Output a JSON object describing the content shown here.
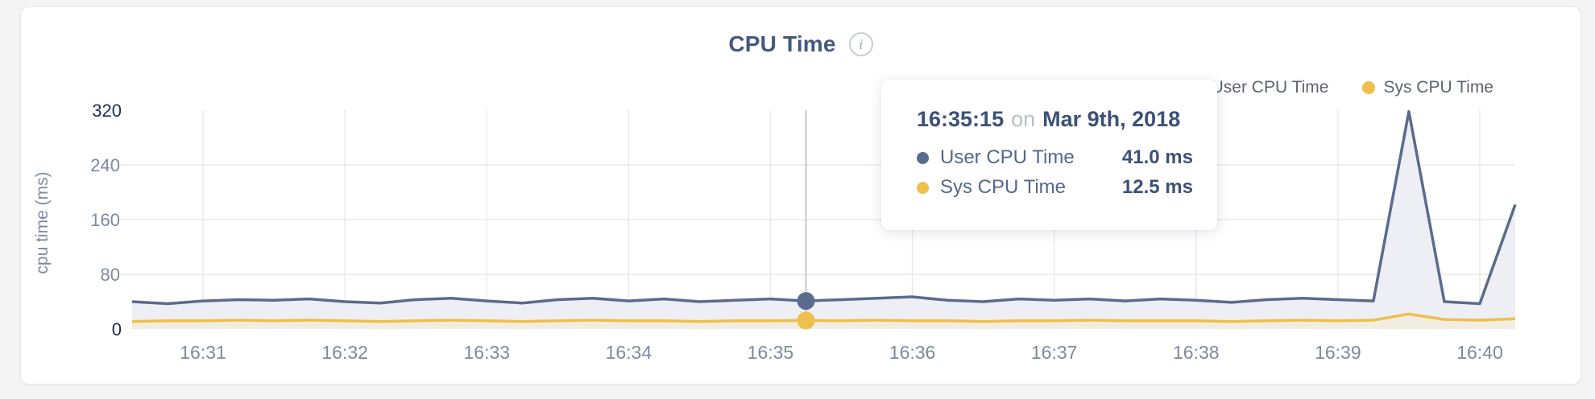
{
  "header": {
    "title": "CPU Time",
    "info_glyph": "i"
  },
  "legend": {
    "items": [
      {
        "label": "User CPU Time",
        "color": "#5b6b8e"
      },
      {
        "label": "Sys CPU Time",
        "color": "#edbf4c"
      }
    ]
  },
  "tooltip": {
    "time": "16:35:15",
    "conj": "on",
    "date": "Mar 9th, 2018",
    "rows": [
      {
        "label": "User CPU Time",
        "value": "41.0 ms",
        "color": "#5b6b8e"
      },
      {
        "label": "Sys CPU Time",
        "value": "12.5 ms",
        "color": "#edbf4c"
      }
    ]
  },
  "chart_data": {
    "type": "line",
    "title": "CPU Time",
    "xlabel": "",
    "ylabel": "cpu time (ms)",
    "ylim": [
      0,
      320
    ],
    "y_ticks": [
      0,
      80,
      160,
      240,
      320
    ],
    "x_ticks": [
      "16:31",
      "16:32",
      "16:33",
      "16:34",
      "16:35",
      "16:36",
      "16:37",
      "16:38",
      "16:39",
      "16:40"
    ],
    "grid": true,
    "legend_position": "top-right",
    "times": [
      "16:30:30",
      "16:30:45",
      "16:31:00",
      "16:31:15",
      "16:31:30",
      "16:31:45",
      "16:32:00",
      "16:32:15",
      "16:32:30",
      "16:32:45",
      "16:33:00",
      "16:33:15",
      "16:33:30",
      "16:33:45",
      "16:34:00",
      "16:34:15",
      "16:34:30",
      "16:34:45",
      "16:35:00",
      "16:35:15",
      "16:35:30",
      "16:35:45",
      "16:36:00",
      "16:36:15",
      "16:36:30",
      "16:36:45",
      "16:37:00",
      "16:37:15",
      "16:37:30",
      "16:37:45",
      "16:38:00",
      "16:38:15",
      "16:38:30",
      "16:38:45",
      "16:39:00",
      "16:39:15",
      "16:39:30",
      "16:39:45",
      "16:40:00",
      "16:40:15"
    ],
    "series": [
      {
        "name": "User CPU Time",
        "color": "#5b6b8e",
        "fill": "#edeff4",
        "values": [
          40,
          37,
          41,
          43,
          42,
          44,
          40,
          38,
          43,
          45,
          41,
          38,
          43,
          45,
          41,
          44,
          40,
          42,
          44,
          41,
          43,
          45,
          47,
          42,
          40,
          44,
          42,
          44,
          41,
          44,
          42,
          39,
          43,
          45,
          43,
          41,
          318,
          40,
          37,
          182
        ]
      },
      {
        "name": "Sys CPU Time",
        "color": "#edbf4c",
        "fill": "#f1ede0",
        "values": [
          11,
          12,
          12,
          13,
          12,
          13,
          12,
          11,
          12,
          13,
          12,
          11,
          12,
          13,
          12,
          12,
          11,
          12,
          12,
          12.5,
          12,
          13,
          12,
          12,
          11,
          12,
          12,
          13,
          12,
          12,
          12,
          11,
          12,
          13,
          12,
          13,
          22,
          14,
          13,
          15
        ]
      }
    ],
    "highlight": {
      "time": "16:35:15"
    },
    "colors": {
      "gridline": "#e9eaec",
      "crosshair": "#c6c8ca",
      "tick_minmax": "#1e2c52",
      "tick_mid": "#7e89a0"
    }
  }
}
